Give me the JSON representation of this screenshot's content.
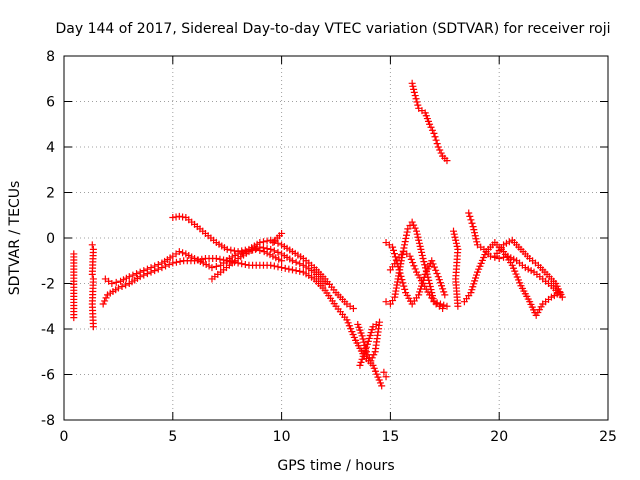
{
  "chart_data": {
    "type": "scatter",
    "title": "Day 144 of 2017, Sidereal Day-to-day VTEC variation (SDTVAR) for receiver roji",
    "xlabel": "GPS time / hours",
    "ylabel": "SDTVAR / TECUs",
    "xlim": [
      0,
      25
    ],
    "ylim": [
      -8,
      8
    ],
    "x_ticks": [
      0,
      5,
      10,
      15,
      20,
      25
    ],
    "y_ticks": [
      -8,
      -6,
      -4,
      -2,
      0,
      2,
      4,
      6,
      8
    ],
    "grid": true,
    "marker": "+",
    "marker_color": "#ff0000",
    "series": [
      {
        "name": "SDTVAR",
        "approx_traces": [
          {
            "x": [
              0.45,
              0.45,
              0.45
            ],
            "y": [
              -0.7,
              -1.5,
              -3.5
            ]
          },
          {
            "x": [
              1.3,
              1.35,
              1.3,
              1.35,
              1.3,
              1.35
            ],
            "y": [
              -0.3,
              -0.5,
              -1.6,
              -1.8,
              -2.9,
              -3.9
            ]
          },
          {
            "x": [
              1.8,
              2.0,
              2.5,
              3.0,
              3.5,
              4.0,
              4.5,
              5.0,
              5.5,
              6.0,
              6.5,
              7.0,
              7.5,
              8.0,
              8.5,
              9.0,
              9.5,
              10.0,
              10.5,
              11.0,
              11.5,
              12.0,
              12.5,
              13.0,
              13.4,
              13.8,
              14.2,
              14.6
            ],
            "y": [
              -2.9,
              -2.5,
              -2.2,
              -2.0,
              -1.7,
              -1.5,
              -1.3,
              -1.1,
              -1.0,
              -1.0,
              -0.9,
              -0.9,
              -1.0,
              -1.1,
              -1.2,
              -1.2,
              -1.2,
              -1.3,
              -1.4,
              -1.5,
              -1.8,
              -2.3,
              -3.0,
              -3.6,
              -4.5,
              -5.2,
              -5.6,
              -6.5
            ]
          },
          {
            "x": [
              1.9,
              2.2,
              2.6,
              3.0,
              3.5,
              4.0,
              4.5,
              5.0,
              5.3,
              5.6,
              6.0,
              6.4,
              6.8,
              7.2,
              7.6,
              8.0,
              8.4,
              8.8,
              9.2,
              9.6,
              10.0
            ],
            "y": [
              -1.8,
              -2.0,
              -1.9,
              -1.7,
              -1.5,
              -1.3,
              -1.1,
              -0.8,
              -0.6,
              -0.7,
              -0.9,
              -1.1,
              -1.3,
              -1.2,
              -0.9,
              -0.7,
              -0.6,
              -0.5,
              -0.6,
              -0.8,
              -1.0
            ]
          },
          {
            "x": [
              5.0,
              5.3,
              5.6,
              6.0,
              6.5,
              7.0,
              7.5,
              8.0,
              8.5,
              9.0,
              9.5,
              10.0,
              10.5,
              11.0,
              11.5,
              12.0,
              12.5,
              13.0,
              13.3
            ],
            "y": [
              0.9,
              0.95,
              0.9,
              0.6,
              0.2,
              -0.2,
              -0.5,
              -0.6,
              -0.5,
              -0.2,
              -0.1,
              -0.3,
              -0.6,
              -0.9,
              -1.3,
              -1.8,
              -2.4,
              -2.9,
              -3.1
            ]
          },
          {
            "x": [
              6.8,
              7.2,
              7.6,
              8.0,
              8.5,
              9.0,
              9.5,
              10.0,
              10.5,
              11.0,
              11.5,
              12.0
            ],
            "y": [
              -1.8,
              -1.5,
              -1.2,
              -0.9,
              -0.6,
              -0.4,
              -0.5,
              -0.7,
              -1.0,
              -1.2,
              -1.5,
              -2.0
            ]
          },
          {
            "x": [
              9.6,
              9.8,
              10.0
            ],
            "y": [
              -0.2,
              0.0,
              0.2
            ]
          },
          {
            "x": [
              13.5,
              13.7,
              13.9,
              14.1,
              14.3,
              14.5,
              14.2,
              13.9,
              13.6
            ],
            "y": [
              -3.8,
              -4.3,
              -5.0,
              -5.4,
              -5.0,
              -3.7,
              -3.9,
              -4.8,
              -5.6
            ]
          },
          {
            "x": [
              14.7,
              14.8
            ],
            "y": [
              -5.9,
              -6.1
            ]
          },
          {
            "x": [
              14.8,
              15.0,
              15.2,
              15.5,
              15.8,
              16.0,
              16.2,
              16.5,
              16.8,
              17.0,
              17.3,
              17.6
            ],
            "y": [
              -2.8,
              -2.9,
              -2.6,
              -1.0,
              0.4,
              0.7,
              0.3,
              -0.9,
              -2.0,
              -2.8,
              -2.9,
              -3.0
            ]
          },
          {
            "x": [
              15.0,
              15.3,
              15.6,
              15.9,
              16.2,
              16.5,
              16.8,
              17.1,
              17.4
            ],
            "y": [
              -1.4,
              -1.0,
              -0.6,
              -0.8,
              -1.5,
              -2.0,
              -2.5,
              -2.9,
              -3.1
            ]
          },
          {
            "x": [
              14.8,
              15.1,
              15.4,
              15.7,
              16.0,
              16.3,
              16.6,
              16.9,
              17.2,
              17.5
            ],
            "y": [
              -0.2,
              -0.4,
              -1.4,
              -2.4,
              -2.9,
              -2.5,
              -1.6,
              -1.0,
              -1.7,
              -2.5
            ]
          },
          {
            "x": [
              16.0,
              16.1,
              16.3,
              16.6,
              16.8,
              17.0,
              17.2,
              17.4,
              17.6
            ],
            "y": [
              6.8,
              6.4,
              5.7,
              5.5,
              5.0,
              4.6,
              4.0,
              3.6,
              3.4
            ]
          },
          {
            "x": [
              17.9,
              18.1,
              18.0,
              18.1
            ],
            "y": [
              0.3,
              -0.5,
              -1.8,
              -3.0
            ]
          },
          {
            "x": [
              18.6,
              18.8,
              19.0,
              19.3,
              19.6,
              20.0,
              20.4,
              20.8,
              21.2,
              21.6,
              22.0,
              22.4,
              22.8
            ],
            "y": [
              1.1,
              0.5,
              -0.3,
              -0.5,
              -0.8,
              -0.9,
              -0.8,
              -1.0,
              -1.3,
              -1.5,
              -1.8,
              -2.1,
              -2.5
            ]
          },
          {
            "x": [
              18.4,
              18.7,
              19.0,
              19.4,
              19.8,
              20.2,
              20.6,
              21.0,
              21.4,
              21.7,
              22.0,
              22.4,
              22.8
            ],
            "y": [
              -2.8,
              -2.4,
              -1.5,
              -0.6,
              -0.2,
              -0.6,
              -1.2,
              -2.1,
              -2.8,
              -3.4,
              -2.9,
              -2.6,
              -2.4
            ]
          },
          {
            "x": [
              19.8,
              20.2,
              20.6,
              21.0,
              21.4,
              21.8,
              22.2,
              22.6,
              22.9
            ],
            "y": [
              -0.8,
              -0.3,
              -0.1,
              -0.5,
              -0.9,
              -1.2,
              -1.6,
              -2.0,
              -2.6
            ]
          }
        ]
      }
    ]
  }
}
